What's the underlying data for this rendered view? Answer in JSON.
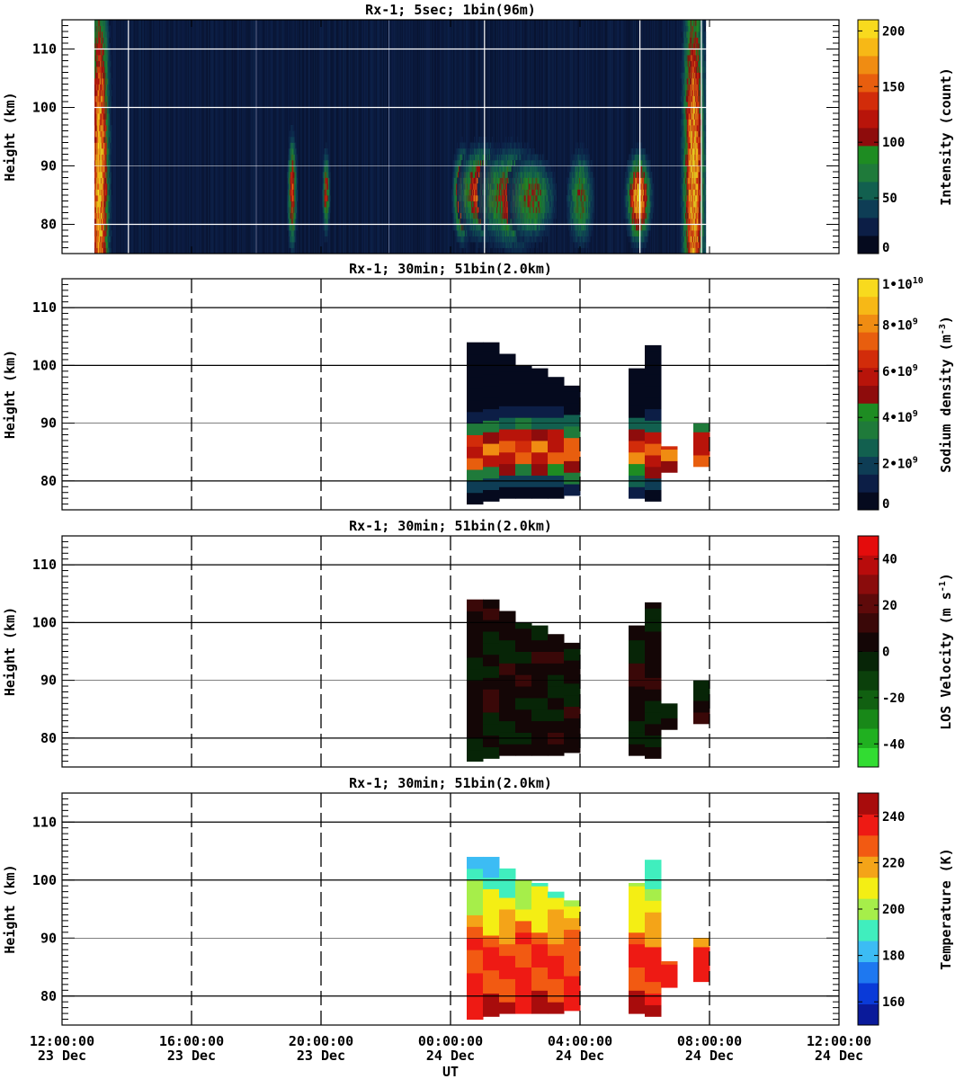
{
  "x_axis": {
    "ticks": [
      {
        "time": "12:00:00",
        "date": "23 Dec"
      },
      {
        "time": "16:00:00",
        "date": "23 Dec"
      },
      {
        "time": "20:00:00",
        "date": "23 Dec"
      },
      {
        "time": "00:00:00",
        "date": "24 Dec"
      },
      {
        "time": "04:00:00",
        "date": "24 Dec"
      },
      {
        "time": "08:00:00",
        "date": "24 Dec"
      },
      {
        "time": "12:00:00",
        "date": "24 Dec"
      }
    ],
    "label": "UT",
    "range_hours": [
      0,
      24
    ]
  },
  "chart_data": [
    {
      "type": "heatmap",
      "title": "Rx-1;  5sec; 1bin(96m)",
      "ylabel": "Height (km)",
      "ylim": [
        75,
        115
      ],
      "yticks": [
        80,
        90,
        100,
        110
      ],
      "colorbar": {
        "label": "Intensity (count)",
        "range": [
          0,
          210
        ],
        "ticks": [
          "0",
          "50",
          "100",
          "150",
          "200"
        ],
        "tick_values": [
          0,
          50,
          100,
          150,
          200
        ],
        "colors": [
          "#050a1e",
          "#0c1e46",
          "#0e3d55",
          "#12604f",
          "#1f7a3a",
          "#1e8c22",
          "#8e0c0c",
          "#b8140a",
          "#d22c0a",
          "#e85e0e",
          "#f08c12",
          "#f7b816",
          "#f8da1e"
        ]
      },
      "observation_hours": [
        1.0,
        19.85
      ],
      "night_features": [
        {
          "t": 1.15,
          "h": 88,
          "v": 200,
          "w": 0.25,
          "sh": 30
        },
        {
          "t": 7.1,
          "h": 85,
          "v": 140,
          "w": 0.12,
          "sh": 8
        },
        {
          "t": 8.15,
          "h": 85,
          "v": 120,
          "w": 0.1,
          "sh": 6
        },
        {
          "t": 12.35,
          "h": 84.5,
          "v": 190,
          "w": 0.22,
          "sh": 6
        },
        {
          "t": 13.0,
          "h": 85,
          "v": 180,
          "w": 0.55,
          "sh": 6
        },
        {
          "t": 13.9,
          "h": 84,
          "v": 130,
          "w": 0.8,
          "sh": 7
        },
        {
          "t": 14.5,
          "h": 84,
          "v": 105,
          "w": 0.6,
          "sh": 6
        },
        {
          "t": 16.0,
          "h": 84,
          "v": 95,
          "w": 0.35,
          "sh": 7
        },
        {
          "t": 17.8,
          "h": 84,
          "v": 200,
          "w": 0.3,
          "sh": 6
        },
        {
          "t": 19.5,
          "h": 88,
          "v": 200,
          "w": 0.28,
          "sh": 30
        }
      ]
    },
    {
      "type": "heatmap",
      "title": "Rx-1; 30min; 51bin(2.0km)",
      "ylabel": "Height (km)",
      "ylim": [
        75,
        115
      ],
      "yticks": [
        80,
        90,
        100,
        110
      ],
      "colorbar": {
        "label": "Sodium density (m^-3)",
        "range": [
          0,
          10000000000.0
        ],
        "ticks": [
          "0",
          "2•10^9",
          "4•10^9",
          "6•10^9",
          "8•10^9",
          "1•10^10"
        ],
        "tick_values": [
          0,
          2000000000.0,
          4000000000.0,
          6000000000.0,
          8000000000.0,
          10000000000.0
        ],
        "colors": [
          "#050a1e",
          "#0c1e46",
          "#0e3d55",
          "#12604f",
          "#1f7a3a",
          "#1e8c22",
          "#8e0c0c",
          "#b8140a",
          "#d22c0a",
          "#e85e0e",
          "#f08c12",
          "#f7b816",
          "#f8da1e"
        ]
      },
      "columns": [
        {
          "start_hour": 12.5,
          "bottom_km": 76,
          "top_km": 104
        },
        {
          "start_hour": 13.0,
          "bottom_km": 76.5,
          "top_km": 104
        },
        {
          "start_hour": 13.5,
          "bottom_km": 77,
          "top_km": 102
        },
        {
          "start_hour": 14.0,
          "bottom_km": 77,
          "top_km": 100
        },
        {
          "start_hour": 14.5,
          "bottom_km": 77,
          "top_km": 99.5
        },
        {
          "start_hour": 15.0,
          "bottom_km": 77,
          "top_km": 98
        },
        {
          "start_hour": 15.5,
          "bottom_km": 77.5,
          "top_km": 96.5
        },
        {
          "start_hour": 17.5,
          "bottom_km": 77,
          "top_km": 99.5
        },
        {
          "start_hour": 18.0,
          "bottom_km": 76.5,
          "top_km": 103.5
        },
        {
          "start_hour": 18.5,
          "bottom_km": 81.5,
          "top_km": 86
        },
        {
          "start_hour": 19.5,
          "bottom_km": 82.5,
          "top_km": 90
        }
      ]
    },
    {
      "type": "heatmap",
      "title": "Rx-1; 30min; 51bin(2.0km)",
      "ylabel": "Height (km)",
      "ylim": [
        75,
        115
      ],
      "yticks": [
        80,
        90,
        100,
        110
      ],
      "colorbar": {
        "label": "LOS Velocity (m s^-1)",
        "range": [
          -50,
          50
        ],
        "ticks": [
          "-40",
          "-20",
          "0",
          "20",
          "40"
        ],
        "tick_values": [
          -40,
          -20,
          0,
          20,
          40
        ],
        "colors": [
          "#32dc32",
          "#20b020",
          "#188818",
          "#116011",
          "#0b400b",
          "#072507",
          "#140606",
          "#3a0808",
          "#5e0a0a",
          "#8a0c0c",
          "#b80c0c",
          "#e40c0c"
        ]
      },
      "columns": [
        {
          "start_hour": 12.5,
          "bottom_km": 76,
          "top_km": 104
        },
        {
          "start_hour": 13.0,
          "bottom_km": 76.5,
          "top_km": 104
        },
        {
          "start_hour": 13.5,
          "bottom_km": 77,
          "top_km": 102
        },
        {
          "start_hour": 14.0,
          "bottom_km": 77,
          "top_km": 100
        },
        {
          "start_hour": 14.5,
          "bottom_km": 77,
          "top_km": 99.5
        },
        {
          "start_hour": 15.0,
          "bottom_km": 77,
          "top_km": 98
        },
        {
          "start_hour": 15.5,
          "bottom_km": 77.5,
          "top_km": 96.5
        },
        {
          "start_hour": 17.5,
          "bottom_km": 77,
          "top_km": 99.5
        },
        {
          "start_hour": 18.0,
          "bottom_km": 76.5,
          "top_km": 103.5
        },
        {
          "start_hour": 18.5,
          "bottom_km": 81.5,
          "top_km": 86
        },
        {
          "start_hour": 19.5,
          "bottom_km": 82.5,
          "top_km": 90
        }
      ]
    },
    {
      "type": "heatmap",
      "title": "Rx-1; 30min; 51bin(2.0km)",
      "ylabel": "Height (km)",
      "ylim": [
        75,
        115
      ],
      "yticks": [
        80,
        90,
        100,
        110
      ],
      "colorbar": {
        "label": "Temperature (K)",
        "range": [
          150,
          250
        ],
        "ticks": [
          "160",
          "180",
          "200",
          "220",
          "240"
        ],
        "tick_values": [
          160,
          180,
          200,
          220,
          240
        ],
        "colors": [
          "#0a1a9a",
          "#0a3ad8",
          "#1e78f0",
          "#3cbcf4",
          "#40eebe",
          "#a6ee4a",
          "#f4ee14",
          "#f4a418",
          "#f25a12",
          "#ee1a14",
          "#a80c0c"
        ]
      },
      "columns": [
        {
          "start_hour": 12.5,
          "bottom_km": 76,
          "top_km": 104
        },
        {
          "start_hour": 13.0,
          "bottom_km": 76.5,
          "top_km": 104
        },
        {
          "start_hour": 13.5,
          "bottom_km": 77,
          "top_km": 102
        },
        {
          "start_hour": 14.0,
          "bottom_km": 77,
          "top_km": 100
        },
        {
          "start_hour": 14.5,
          "bottom_km": 77,
          "top_km": 99.5
        },
        {
          "start_hour": 15.0,
          "bottom_km": 77,
          "top_km": 98
        },
        {
          "start_hour": 15.5,
          "bottom_km": 77.5,
          "top_km": 96.5
        },
        {
          "start_hour": 17.5,
          "bottom_km": 77,
          "top_km": 99.5
        },
        {
          "start_hour": 18.0,
          "bottom_km": 76.5,
          "top_km": 103.5
        },
        {
          "start_hour": 18.5,
          "bottom_km": 81.5,
          "top_km": 86
        },
        {
          "start_hour": 19.5,
          "bottom_km": 82.5,
          "top_km": 90
        }
      ]
    }
  ]
}
